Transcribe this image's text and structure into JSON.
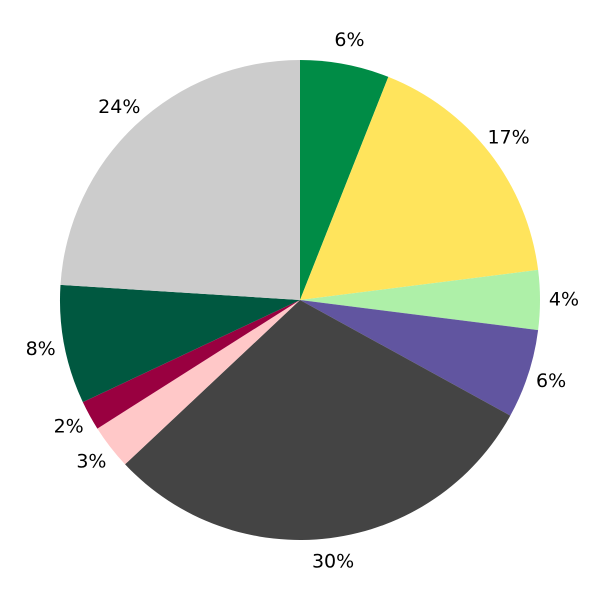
{
  "chart_data": {
    "type": "pie",
    "values": [
      6,
      17,
      4,
      6,
      30,
      3,
      2,
      8,
      24
    ],
    "value_labels": [
      "6%",
      "17%",
      "4%",
      "6%",
      "30%",
      "3%",
      "2%",
      "8%",
      "24%"
    ],
    "colors": [
      "#008c46",
      "#ffe45c",
      "#aef0a8",
      "#6155a0",
      "#444444",
      "#ffc8c8",
      "#990040",
      "#005840",
      "#cccccc"
    ]
  }
}
